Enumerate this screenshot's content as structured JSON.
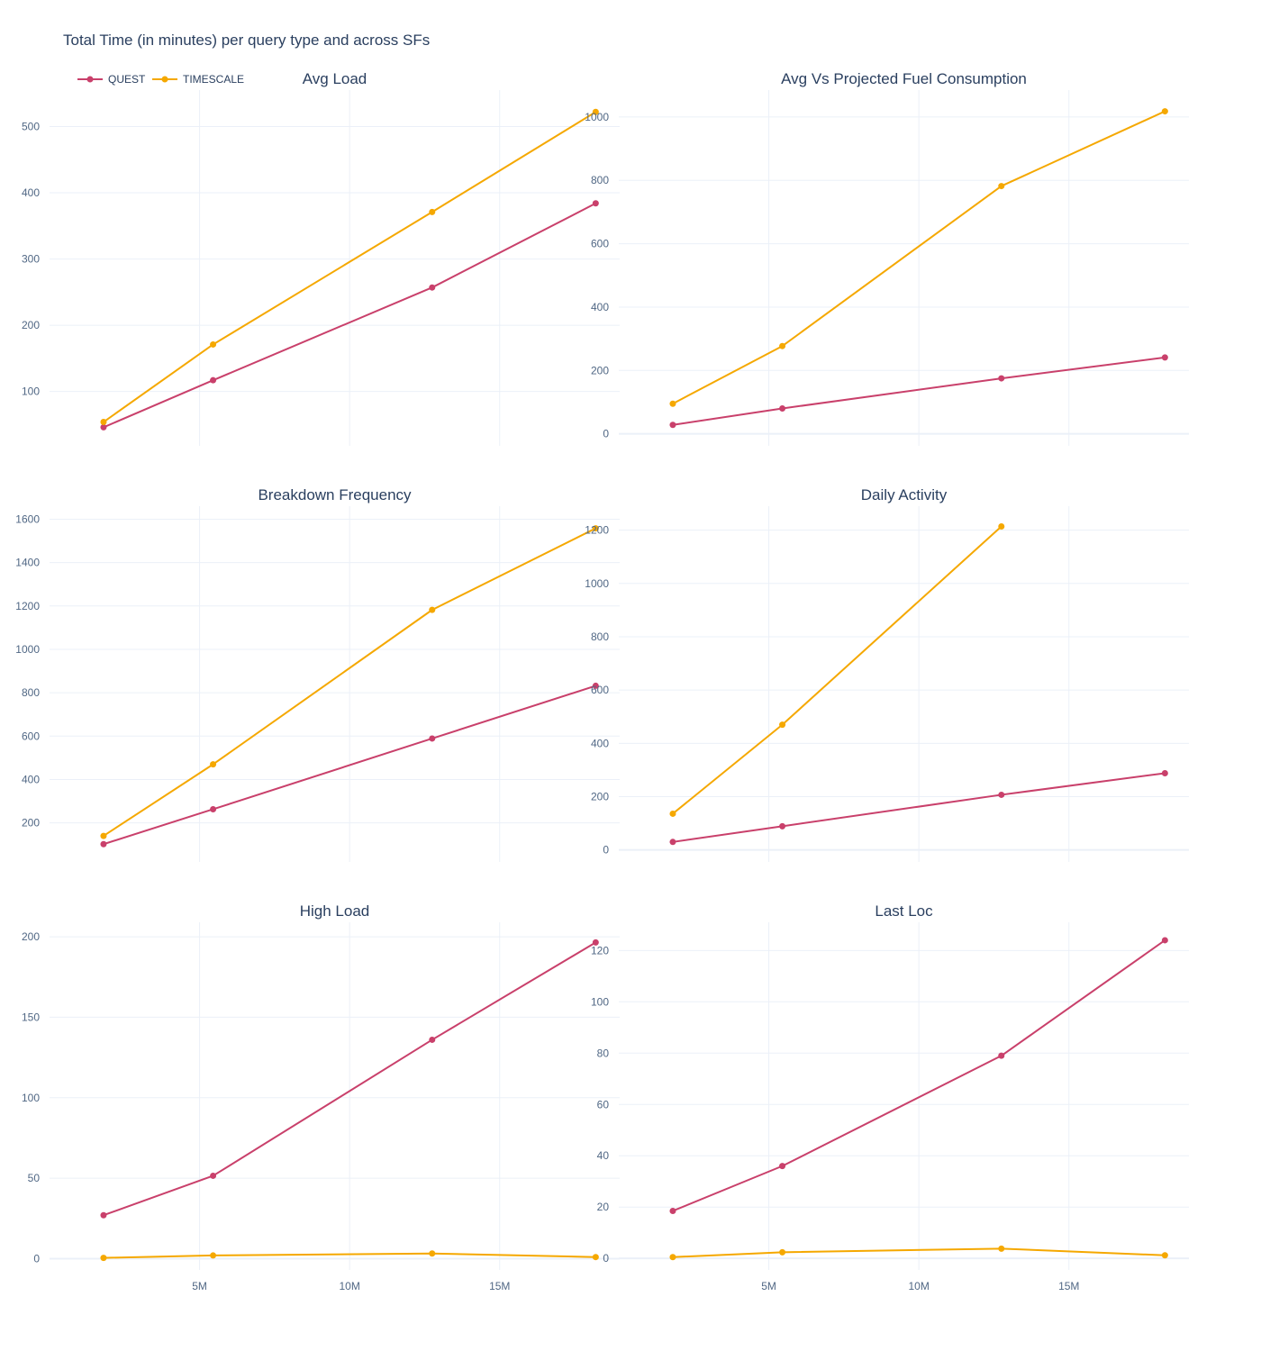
{
  "title": "Total Time (in minutes) per query type and across SFs",
  "colors": {
    "QUEST": "#c9406b",
    "TIMESCALE": "#f5a800"
  },
  "legend": {
    "items": [
      "QUEST",
      "TIMESCALE"
    ],
    "placement": "top-left"
  },
  "chart_data": [
    {
      "type": "line",
      "title": "Avg Load",
      "x": [
        1800000,
        5450000,
        12750000,
        18200000
      ],
      "xticks": [
        {
          "v": 5000000,
          "label": "5M"
        },
        {
          "v": 10000000,
          "label": "10M"
        },
        {
          "v": 15000000,
          "label": "15M"
        }
      ],
      "xlim": [
        0,
        19000000
      ],
      "ylim": [
        18,
        555
      ],
      "yticks": [
        100,
        200,
        300,
        400,
        500
      ],
      "series": [
        {
          "name": "QUEST",
          "values": [
            46,
            117,
            257,
            384
          ]
        },
        {
          "name": "TIMESCALE",
          "values": [
            54,
            171,
            371,
            522
          ]
        }
      ]
    },
    {
      "type": "line",
      "title": "Avg Vs Projected Fuel Consumption",
      "x": [
        1800000,
        5450000,
        12750000,
        18200000
      ],
      "xticks": [
        {
          "v": 5000000,
          "label": "5M"
        },
        {
          "v": 10000000,
          "label": "10M"
        },
        {
          "v": 15000000,
          "label": "15M"
        }
      ],
      "xlim": [
        0,
        19000000
      ],
      "ylim": [
        -38,
        1085
      ],
      "yticks": [
        0,
        200,
        400,
        600,
        800,
        1000
      ],
      "series": [
        {
          "name": "QUEST",
          "values": [
            28,
            80,
            175,
            241
          ]
        },
        {
          "name": "TIMESCALE",
          "values": [
            95,
            277,
            782,
            1018
          ]
        }
      ]
    },
    {
      "type": "line",
      "title": "Breakdown Frequency",
      "x": [
        1800000,
        5450000,
        12750000,
        18200000
      ],
      "xticks": [
        {
          "v": 5000000,
          "label": "5M"
        },
        {
          "v": 10000000,
          "label": "10M"
        },
        {
          "v": 15000000,
          "label": "15M"
        }
      ],
      "xlim": [
        0,
        19000000
      ],
      "ylim": [
        20,
        1660
      ],
      "yticks": [
        200,
        400,
        600,
        800,
        1000,
        1200,
        1400,
        1600
      ],
      "series": [
        {
          "name": "QUEST",
          "values": [
            102,
            263,
            589,
            832
          ]
        },
        {
          "name": "TIMESCALE",
          "values": [
            140,
            470,
            1182,
            1558
          ]
        }
      ]
    },
    {
      "type": "line",
      "title": "Daily Activity",
      "x": [
        1800000,
        5450000,
        12750000,
        18200000
      ],
      "xticks": [
        {
          "v": 5000000,
          "label": "5M"
        },
        {
          "v": 10000000,
          "label": "10M"
        },
        {
          "v": 15000000,
          "label": "15M"
        }
      ],
      "xlim": [
        0,
        19000000
      ],
      "ylim": [
        -45,
        1290
      ],
      "yticks": [
        0,
        200,
        400,
        600,
        800,
        1000,
        1200
      ],
      "series": [
        {
          "name": "QUEST",
          "values": [
            30,
            89,
            207,
            288
          ]
        },
        {
          "name": "TIMESCALE",
          "values": [
            136,
            470,
            1214,
            null
          ]
        }
      ]
    },
    {
      "type": "line",
      "title": "High Load",
      "x": [
        1800000,
        5450000,
        12750000,
        18200000
      ],
      "xticks": [
        {
          "v": 5000000,
          "label": "5M"
        },
        {
          "v": 10000000,
          "label": "10M"
        },
        {
          "v": 15000000,
          "label": "15M"
        }
      ],
      "xlim": [
        0,
        19000000
      ],
      "ylim": [
        -7,
        209
      ],
      "yticks": [
        0,
        50,
        100,
        150,
        200
      ],
      "series": [
        {
          "name": "QUEST",
          "values": [
            27,
            51.5,
            136,
            196.5
          ]
        },
        {
          "name": "TIMESCALE",
          "values": [
            0.5,
            2,
            3.2,
            1
          ]
        }
      ]
    },
    {
      "type": "line",
      "title": "Last Loc",
      "x": [
        1800000,
        5450000,
        12750000,
        18200000
      ],
      "xticks": [
        {
          "v": 5000000,
          "label": "5M"
        },
        {
          "v": 10000000,
          "label": "10M"
        },
        {
          "v": 15000000,
          "label": "15M"
        }
      ],
      "xlim": [
        0,
        19000000
      ],
      "ylim": [
        -4.5,
        131
      ],
      "yticks": [
        0,
        20,
        40,
        60,
        80,
        100,
        120
      ],
      "series": [
        {
          "name": "QUEST",
          "values": [
            18.5,
            36,
            79,
            124
          ]
        },
        {
          "name": "TIMESCALE",
          "values": [
            0.5,
            2.4,
            3.8,
            1.2
          ]
        }
      ]
    }
  ]
}
